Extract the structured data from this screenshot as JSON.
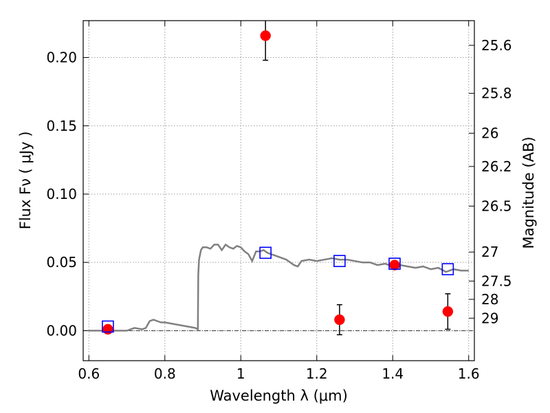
{
  "chart_data": {
    "type": "scatter",
    "xlabel": "Wavelength  λ (μm)",
    "ylabel": "Flux  Fν  ( μJy )",
    "y2label": "Magnitude (AB)",
    "xlim": [
      0.585,
      1.615
    ],
    "ylim": [
      -0.022,
      0.227
    ],
    "x_ticks": [
      0.6,
      0.8,
      1.0,
      1.2,
      1.4,
      1.6
    ],
    "x_tick_labels": [
      "0.6",
      "0.8",
      "1",
      "1.2",
      "1.4",
      "1.6"
    ],
    "y_ticks": [
      0.0,
      0.05,
      0.1,
      0.15,
      0.2
    ],
    "y_tick_labels": [
      "0.00",
      "0.05",
      "0.10",
      "0.15",
      "0.20"
    ],
    "y2_ticks": [
      "25.6",
      "25.8",
      "26",
      "26.2",
      "26.5",
      "27",
      "27.5",
      "28",
      "29"
    ],
    "grid": true,
    "colors": {
      "model": "#808080",
      "observed": "#ff0000",
      "model_photometry": "#0000ff",
      "errorbar": "#000000",
      "zero_line": "#000000"
    },
    "series": [
      {
        "kind": "line",
        "x": [
          0.6,
          0.66,
          0.7,
          0.72,
          0.74,
          0.75,
          0.76,
          0.77,
          0.78,
          0.79,
          0.8,
          0.82,
          0.84,
          0.86,
          0.88,
          0.887,
          0.888,
          0.89,
          0.895,
          0.9,
          0.91,
          0.92,
          0.93,
          0.94,
          0.95,
          0.96,
          0.97,
          0.98,
          0.99,
          1.0,
          1.01,
          1.02,
          1.03,
          1.04,
          1.05,
          1.06,
          1.07,
          1.08,
          1.09,
          1.1,
          1.12,
          1.14,
          1.15,
          1.16,
          1.18,
          1.2,
          1.22,
          1.24,
          1.26,
          1.28,
          1.3,
          1.32,
          1.34,
          1.36,
          1.38,
          1.4,
          1.42,
          1.44,
          1.46,
          1.48,
          1.5,
          1.52,
          1.54,
          1.55,
          1.56,
          1.58,
          1.6
        ],
        "y": [
          0.0,
          0.0,
          0.0,
          0.002,
          0.001,
          0.002,
          0.007,
          0.008,
          0.007,
          0.006,
          0.006,
          0.005,
          0.004,
          0.003,
          0.002,
          0.001,
          0.041,
          0.052,
          0.059,
          0.061,
          0.061,
          0.06,
          0.063,
          0.063,
          0.059,
          0.063,
          0.061,
          0.06,
          0.062,
          0.061,
          0.058,
          0.056,
          0.051,
          0.058,
          0.058,
          0.059,
          0.057,
          0.056,
          0.055,
          0.054,
          0.052,
          0.048,
          0.047,
          0.051,
          0.052,
          0.051,
          0.052,
          0.053,
          0.052,
          0.052,
          0.051,
          0.05,
          0.05,
          0.048,
          0.049,
          0.047,
          0.048,
          0.047,
          0.046,
          0.047,
          0.045,
          0.046,
          0.043,
          0.044,
          0.045,
          0.044,
          0.044
        ]
      },
      {
        "kind": "errorbar-scatter",
        "marker": "circle",
        "points": [
          {
            "x": 0.65,
            "y": 0.001,
            "err": 0.003
          },
          {
            "x": 1.065,
            "y": 0.216,
            "err": 0.018
          },
          {
            "x": 1.26,
            "y": 0.008,
            "err": 0.011
          },
          {
            "x": 1.405,
            "y": 0.048,
            "err": 0.0
          },
          {
            "x": 1.545,
            "y": 0.014,
            "err": 0.013
          }
        ]
      },
      {
        "kind": "scatter",
        "marker": "open-square",
        "points": [
          {
            "x": 0.65,
            "y": 0.003
          },
          {
            "x": 1.065,
            "y": 0.057
          },
          {
            "x": 1.26,
            "y": 0.051
          },
          {
            "x": 1.405,
            "y": 0.049
          },
          {
            "x": 1.545,
            "y": 0.045
          }
        ]
      }
    ]
  }
}
